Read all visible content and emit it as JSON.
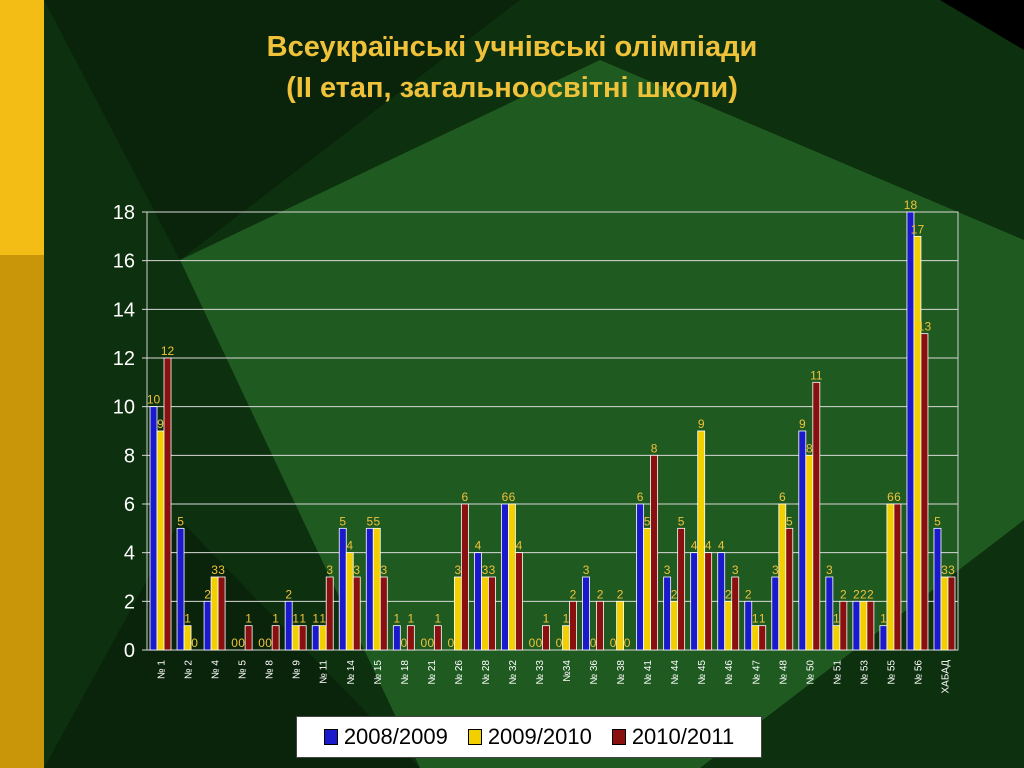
{
  "slide": {
    "title_line1": "Всеукраїнські учнівські олімпіади",
    "title_line2": "(II етап, загальноосвітні школи)"
  },
  "colors": {
    "title": "#f0c23a",
    "series": [
      "#1a1acc",
      "#f2d000",
      "#8a0f0f"
    ],
    "value_label": "#f0c23a"
  },
  "chart_data": {
    "type": "bar",
    "ylim": [
      0,
      18
    ],
    "yticks": [
      0,
      2,
      4,
      6,
      8,
      10,
      12,
      14,
      16,
      18
    ],
    "grid": true,
    "legend_position": "bottom",
    "categories": [
      "№ 1",
      "№ 2",
      "№ 4",
      "№ 5",
      "№ 8",
      "№ 9",
      "№ 11",
      "№ 14",
      "№ 15",
      "№ 18",
      "№ 21",
      "№ 26",
      "№ 28",
      "№ 32",
      "№ 33",
      "№34",
      "№ 36",
      "№ 38",
      "№ 41",
      "№ 44",
      "№ 45",
      "№ 46",
      "№ 47",
      "№ 48",
      "№ 50",
      "№ 51",
      "№ 53",
      "№ 55",
      "№ 56",
      "ХАБАД"
    ],
    "series": [
      {
        "name": "2008/2009",
        "values": [
          10,
          5,
          2,
          0,
          0,
          2,
          1,
          5,
          5,
          1,
          0,
          0,
          4,
          6,
          0,
          0,
          3,
          0,
          6,
          3,
          4,
          4,
          2,
          3,
          9,
          3,
          2,
          1,
          18,
          5
        ]
      },
      {
        "name": "2009/2010",
        "values": [
          9,
          1,
          3,
          0,
          0,
          1,
          1,
          4,
          5,
          0,
          0,
          3,
          3,
          6,
          0,
          1,
          0,
          2,
          5,
          2,
          9,
          2,
          1,
          6,
          8,
          1,
          2,
          6,
          17,
          3
        ]
      },
      {
        "name": "2010/2011",
        "values": [
          12,
          0,
          3,
          1,
          1,
          1,
          3,
          3,
          3,
          1,
          1,
          6,
          3,
          4,
          1,
          2,
          2,
          0,
          8,
          5,
          4,
          3,
          1,
          5,
          11,
          2,
          2,
          6,
          13,
          3
        ]
      }
    ]
  }
}
